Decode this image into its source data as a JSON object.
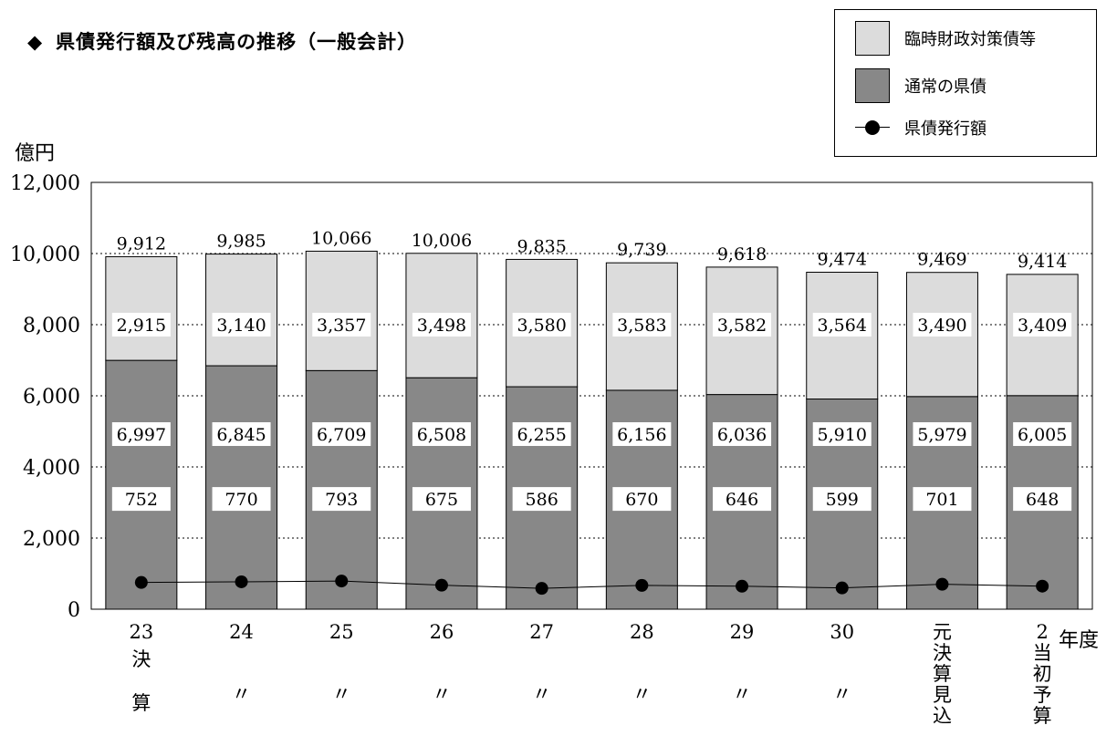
{
  "title": "県債発行額及び残高の推移（一般会計）",
  "chart_data": {
    "type": "bar",
    "stacked": true,
    "ylabel": "億円",
    "xunit": "年度",
    "ylim": [
      0,
      12000
    ],
    "yticks": [
      0,
      2000,
      4000,
      6000,
      8000,
      10000,
      12000
    ],
    "ytick_labels": [
      "0",
      "2,000",
      "4,000",
      "6,000",
      "8,000",
      "10,000",
      "12,000"
    ],
    "grid": "dotted horizontal",
    "legend_position": "top-right",
    "categories": [
      [
        "23",
        "決",
        "算"
      ],
      [
        "24",
        "〃"
      ],
      [
        "25",
        "〃"
      ],
      [
        "26",
        "〃"
      ],
      [
        "27",
        "〃"
      ],
      [
        "28",
        "〃"
      ],
      [
        "29",
        "〃"
      ],
      [
        "30",
        "〃"
      ],
      [
        "元",
        "決",
        "算",
        "見",
        "込"
      ],
      [
        "2",
        "当",
        "初",
        "予",
        "算"
      ]
    ],
    "series": [
      {
        "name": "通常の県債",
        "kind": "bar",
        "color": "#888888",
        "values": [
          6997,
          6845,
          6709,
          6508,
          6255,
          6156,
          6036,
          5910,
          5979,
          6005
        ],
        "labels": [
          "6,997",
          "6,845",
          "6,709",
          "6,508",
          "6,255",
          "6,156",
          "6,036",
          "5,910",
          "5,979",
          "6,005"
        ]
      },
      {
        "name": "臨時財政対策債等",
        "kind": "bar",
        "color": "#dcdcdc",
        "values": [
          2915,
          3140,
          3357,
          3498,
          3580,
          3583,
          3582,
          3564,
          3490,
          3409
        ],
        "labels": [
          "2,915",
          "3,140",
          "3,357",
          "3,498",
          "3,580",
          "3,583",
          "3,582",
          "3,564",
          "3,490",
          "3,409"
        ]
      },
      {
        "name": "県債発行額",
        "kind": "line",
        "color": "#000000",
        "values": [
          752,
          770,
          793,
          675,
          586,
          670,
          646,
          599,
          701,
          648
        ],
        "labels": [
          "752",
          "770",
          "793",
          "675",
          "586",
          "670",
          "646",
          "599",
          "701",
          "648"
        ]
      }
    ],
    "totals": [
      9912,
      9985,
      10066,
      10006,
      9835,
      9739,
      9618,
      9474,
      9469,
      9414
    ],
    "total_labels": [
      "9,912",
      "9,985",
      "10,066",
      "10,006",
      "9,835",
      "9,739",
      "9,618",
      "9,474",
      "9,469",
      "9,414"
    ]
  },
  "legend": [
    {
      "label": "臨時財政対策債等",
      "kind": "swatch",
      "color": "#dcdcdc"
    },
    {
      "label": "通常の県債",
      "kind": "swatch",
      "color": "#888888"
    },
    {
      "label": "県債発行額",
      "kind": "line",
      "color": "#000000"
    }
  ]
}
